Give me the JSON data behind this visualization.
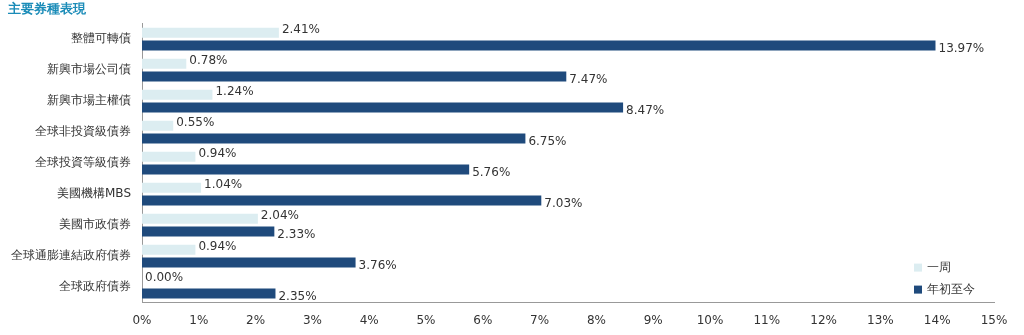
{
  "chart_data": {
    "type": "bar",
    "orientation": "horizontal",
    "title": "主要券種表現",
    "categories": [
      "整體可轉債",
      "新興市場公司債",
      "新興市場主權債",
      "全球非投資級債券",
      "全球投資等級債券",
      "美國機構MBS",
      "美國市政債券",
      "全球通膨連結政府債券",
      "全球政府債券"
    ],
    "series": [
      {
        "name": "一周",
        "color": "#dcedf1",
        "values": [
          2.41,
          0.78,
          1.24,
          0.55,
          0.94,
          1.04,
          2.04,
          0.94,
          0.0
        ],
        "value_labels": [
          "2.41%",
          "0.78%",
          "1.24%",
          "0.55%",
          "0.94%",
          "1.04%",
          "2.04%",
          "0.94%",
          "0.00%"
        ]
      },
      {
        "name": "年初至今",
        "color": "#1f4a7c",
        "values": [
          13.97,
          7.47,
          8.47,
          6.75,
          5.76,
          7.03,
          2.33,
          3.76,
          2.35
        ],
        "value_labels": [
          "13.97%",
          "7.47%",
          "8.47%",
          "6.75%",
          "5.76%",
          "7.03%",
          "2.33%",
          "3.76%",
          "2.35%"
        ]
      }
    ],
    "xlim": [
      0,
      15
    ],
    "xticks": [
      {
        "value": 0,
        "label": "0%"
      },
      {
        "value": 1,
        "label": "1%"
      },
      {
        "value": 2,
        "label": "2%"
      },
      {
        "value": 3,
        "label": "3%"
      },
      {
        "value": 4,
        "label": "4%"
      },
      {
        "value": 5,
        "label": "5%"
      },
      {
        "value": 6,
        "label": "6%"
      },
      {
        "value": 7,
        "label": "7%"
      },
      {
        "value": 8,
        "label": "8%"
      },
      {
        "value": 9,
        "label": "9%"
      },
      {
        "value": 10,
        "label": "10%"
      },
      {
        "value": 11,
        "label": "11%"
      },
      {
        "value": 12,
        "label": "12%"
      },
      {
        "value": 13,
        "label": "13%"
      },
      {
        "value": 14,
        "label": "14%"
      },
      {
        "value": 15,
        "label": "15%"
      }
    ],
    "grid": false,
    "legend": "bottom right"
  }
}
